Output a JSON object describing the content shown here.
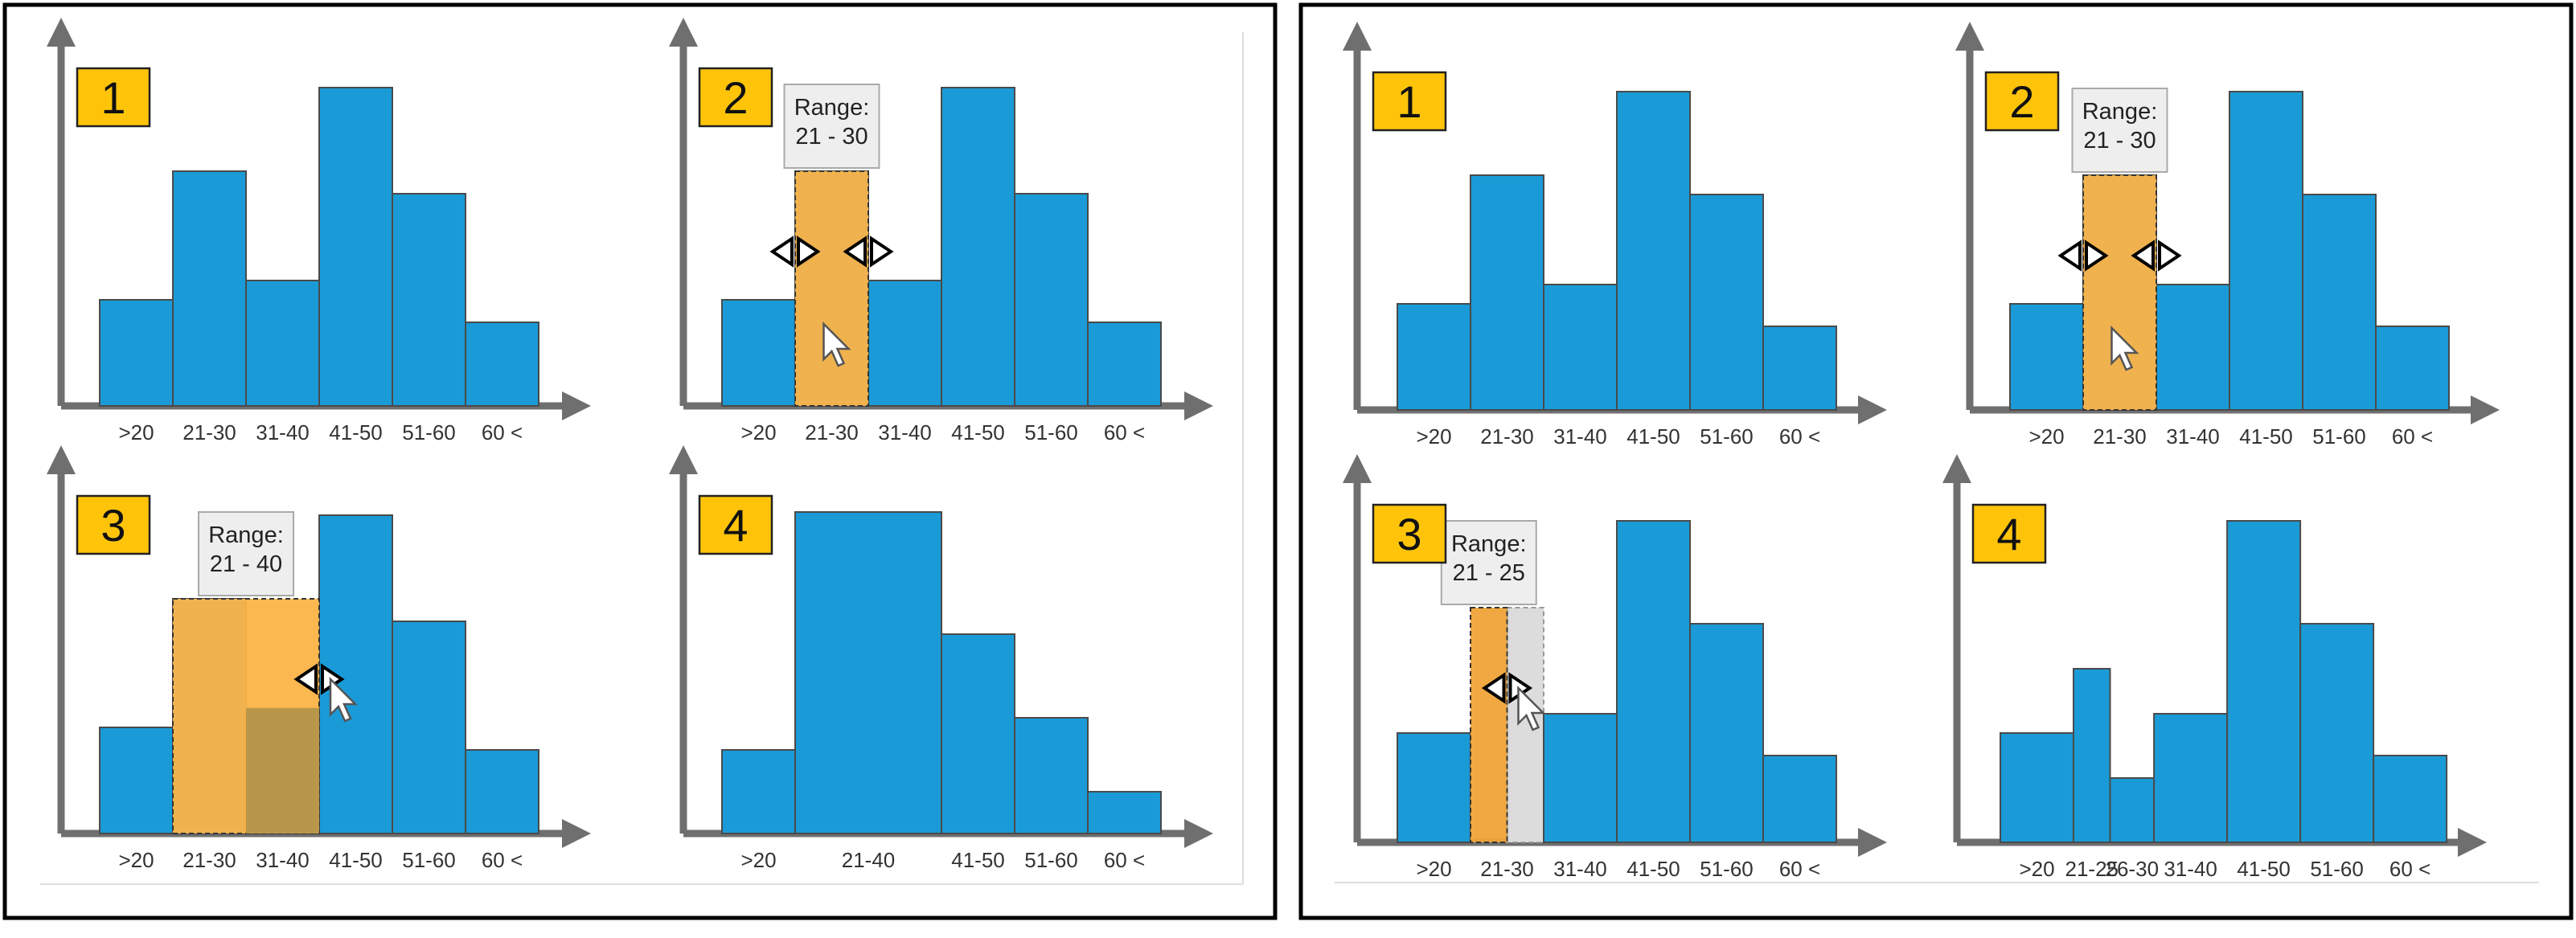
{
  "colors": {
    "bar": "#1a9bd7",
    "bar_stroke": "#4a4a4a",
    "axis": "#6f6f6f",
    "highlight": "#fbb347",
    "highlight_dark": "#f0a338",
    "overlap": "#b8974a",
    "ghost": "#dcdcdc",
    "badge": "#ffc40a",
    "tooltip_bg": "#eeeeee",
    "frame": "#000000"
  },
  "figures": [
    {
      "panels": [
        {
          "step": "1",
          "chart_data": {
            "type": "bar",
            "categories": [
              ">20",
              "21-30",
              "31-40",
              "41-50",
              "51-60",
              "60 <"
            ],
            "values": [
              33,
              73,
              39,
              99,
              66,
              26
            ],
            "ylim": [
              0,
              100
            ]
          }
        },
        {
          "step": "2",
          "tooltip": {
            "line1": "Range:",
            "line2": "21 - 30"
          },
          "selection": {
            "from": 1,
            "to": 2
          },
          "handles": [
            1,
            2
          ],
          "cursor": "arrow-cursor",
          "chart_data": {
            "type": "bar",
            "categories": [
              ">20",
              "21-30",
              "31-40",
              "41-50",
              "51-60",
              "60 <"
            ],
            "values": [
              33,
              73,
              39,
              99,
              66,
              26
            ],
            "ylim": [
              0,
              100
            ]
          }
        },
        {
          "step": "3",
          "tooltip": {
            "line1": "Range:",
            "line2": "21 - 40"
          },
          "selection": {
            "from": 1,
            "to": 3
          },
          "handles": [
            3
          ],
          "cursor": "arrow-cursor",
          "chart_data": {
            "type": "bar",
            "categories": [
              ">20",
              "21-30",
              "31-40",
              "41-50",
              "51-60",
              "60 <"
            ],
            "values": [
              33,
              73,
              39,
              99,
              66,
              26
            ],
            "ylim": [
              0,
              100
            ]
          }
        },
        {
          "step": "4",
          "chart_data": {
            "type": "bar",
            "categories": [
              ">20",
              "21-40",
              "41-50",
              "51-60",
              "60 <"
            ],
            "widths": [
              1,
              2,
              1,
              1,
              1
            ],
            "values": [
              26,
              100,
              62,
              36,
              13
            ],
            "ylim": [
              0,
              100
            ]
          }
        }
      ]
    },
    {
      "panels": [
        {
          "step": "1",
          "chart_data": {
            "type": "bar",
            "categories": [
              ">20",
              "21-30",
              "31-40",
              "41-50",
              "51-60",
              "60 <"
            ],
            "values": [
              33,
              73,
              39,
              99,
              67,
              26
            ],
            "ylim": [
              0,
              100
            ]
          }
        },
        {
          "step": "2",
          "tooltip": {
            "line1": "Range:",
            "line2": "21 - 30"
          },
          "selection": {
            "from": 1,
            "to": 2
          },
          "handles": [
            1,
            2
          ],
          "cursor": "arrow-cursor",
          "chart_data": {
            "type": "bar",
            "categories": [
              ">20",
              "21-30",
              "31-40",
              "41-50",
              "51-60",
              "60 <"
            ],
            "values": [
              33,
              73,
              39,
              99,
              67,
              26
            ],
            "ylim": [
              0,
              100
            ]
          }
        },
        {
          "step": "3",
          "tooltip": {
            "line1": "Range:",
            "line2": "21 - 25"
          },
          "selection": {
            "from": 1,
            "to": 1.5
          },
          "ghost": {
            "from": 1.5,
            "to": 2
          },
          "handles": [
            1.5
          ],
          "cursor": "arrow-cursor",
          "chart_data": {
            "type": "bar",
            "categories": [
              ">20",
              "21-30",
              "31-40",
              "41-50",
              "51-60",
              "60 <"
            ],
            "values": [
              34,
              null,
              40,
              100,
              68,
              27
            ],
            "ylim": [
              0,
              100
            ]
          }
        },
        {
          "step": "4",
          "chart_data": {
            "type": "bar",
            "categories": [
              ">20",
              "21-25",
              "26-30",
              "31-40",
              "41-50",
              "51-60",
              "60 <"
            ],
            "widths": [
              1,
              0.5,
              0.6,
              1,
              1,
              1,
              1
            ],
            "values": [
              34,
              54,
              20,
              40,
              100,
              68,
              27
            ],
            "ylim": [
              0,
              100
            ]
          }
        }
      ]
    }
  ]
}
